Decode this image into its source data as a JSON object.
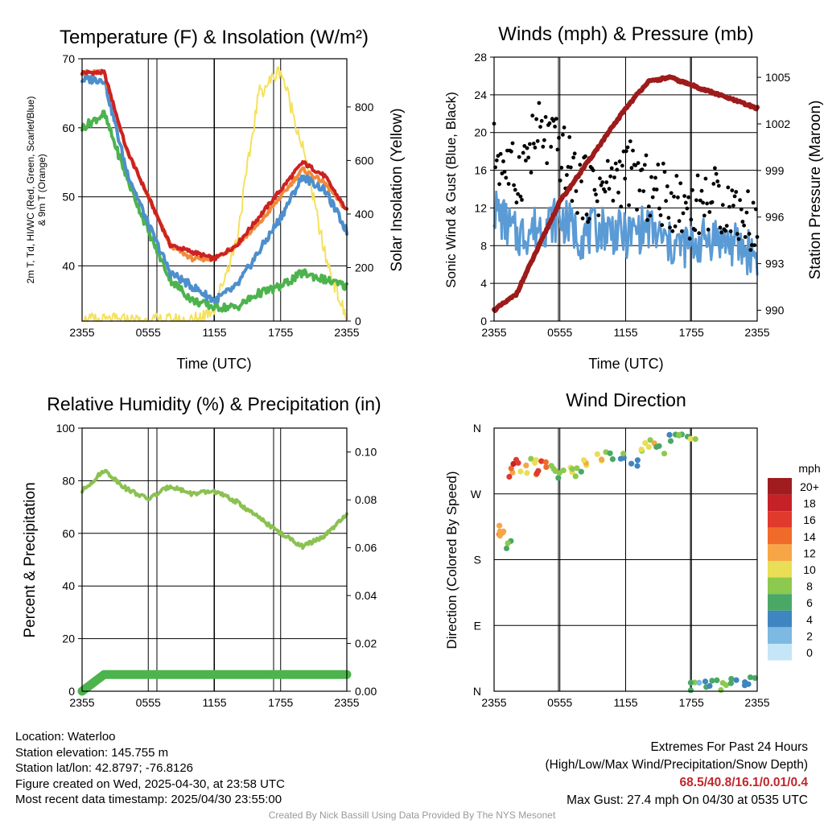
{
  "panels": {
    "temperature": {
      "title": "Temperature (F) & Insolation (W/m²)",
      "ylabel_left": [
        "2m T, Td, HI/WC (Red, Green, Scarlet/Blue)",
        "& 9m T (Orange)"
      ],
      "ylabel_right": "Solar Insolation (Yellow)",
      "xlabel": "Time (UTC)"
    },
    "winds": {
      "title": "Winds (mph) & Pressure (mb)",
      "ylabel_left": "Sonic Wind & Gust (Blue, Black)",
      "ylabel_right": "Station Pressure (Maroon)",
      "xlabel": "Time (UTC)"
    },
    "humidity": {
      "title": "Relative Humidity (%) & Precipitation (in)",
      "ylabel_left": "Percent & Precipitation"
    },
    "direction": {
      "title": "Wind Direction",
      "ylabel_left": "Direction (Colored By Speed)",
      "legend_title": "mph",
      "legend_labels": [
        "20+",
        "18",
        "16",
        "14",
        "12",
        "10",
        "8",
        "6",
        "4",
        "2",
        "0"
      ],
      "legend_colors": [
        "#a01c1e",
        "#c62127",
        "#e03a2c",
        "#f06b2a",
        "#f6a646",
        "#e9de55",
        "#8dc94f",
        "#4aa866",
        "#3f86c1",
        "#7db9e3",
        "#c4e6f7"
      ]
    }
  },
  "chart_data": [
    {
      "type": "line",
      "title": "Temperature (F) & Insolation (W/m²)",
      "xlabel": "Time (UTC)",
      "x_ticks": [
        "2355",
        "0555",
        "1155",
        "1755",
        "2355"
      ],
      "x": [
        "2355",
        "0155",
        "0355",
        "0555",
        "0755",
        "0955",
        "1155",
        "1355",
        "1555",
        "1755",
        "1955",
        "2155",
        "2355"
      ],
      "ylim_left": [
        32,
        70
      ],
      "yticks_left": [
        40,
        50,
        60,
        70
      ],
      "ylim_right": [
        0,
        980
      ],
      "yticks_right": [
        0,
        200,
        400,
        600,
        800
      ],
      "series": [
        {
          "axis": "left",
          "color": "#cc2222",
          "values": [
            68,
            68,
            57,
            50,
            43,
            42,
            41,
            43,
            47,
            51,
            55,
            53,
            48
          ]
        },
        {
          "axis": "left",
          "color": "#f08a3c",
          "values": [
            68,
            68,
            57,
            50,
            43,
            41,
            41,
            43,
            46,
            50,
            54,
            52,
            48
          ]
        },
        {
          "axis": "left",
          "color": "#4d8fcc",
          "values": [
            67,
            67,
            54,
            46,
            39,
            37,
            35,
            37,
            42,
            47,
            53,
            51,
            45
          ]
        },
        {
          "axis": "left",
          "color": "#4db34d",
          "values": [
            60,
            62,
            53,
            45,
            38,
            35,
            34,
            34,
            36,
            37,
            39,
            38,
            37
          ]
        },
        {
          "axis": "right",
          "color": "#f5e15c",
          "values": [
            0,
            0,
            0,
            0,
            0,
            0,
            50,
            300,
            850,
            940,
            650,
            250,
            0
          ]
        }
      ]
    },
    {
      "type": "line",
      "title": "Winds (mph) & Pressure (mb)",
      "xlabel": "Time (UTC)",
      "x_ticks": [
        "2355",
        "0555",
        "1155",
        "1755",
        "2355"
      ],
      "ylim_left": [
        0,
        28
      ],
      "yticks_left": [
        0,
        4,
        8,
        12,
        16,
        20,
        24,
        28
      ],
      "ylim_right": [
        989.3,
        1006.3
      ],
      "yticks_right": [
        990,
        993,
        996,
        999,
        1002,
        1005
      ],
      "series": [
        {
          "axis": "right",
          "color": "#9e1b1b",
          "values": [
            990,
            991,
            994,
            997,
            999,
            1001,
            1003,
            1004.7,
            1005,
            1004.5,
            1004,
            1003.5,
            1003
          ]
        },
        {
          "axis": "left",
          "color": "#5b9bd5",
          "values": [
            12,
            9,
            10,
            11,
            9,
            10,
            9,
            10,
            8,
            8,
            9,
            8,
            7
          ]
        },
        {
          "axis": "left",
          "color": "#000000",
          "values": [
            18,
            15,
            20,
            18,
            14,
            14,
            16,
            14,
            13,
            12,
            13,
            12,
            10
          ]
        }
      ]
    },
    {
      "type": "line",
      "title": "Relative Humidity (%) & Precipitation (in)",
      "x_ticks": [
        "2355",
        "0555",
        "1155",
        "1755",
        "2355"
      ],
      "ylim_left": [
        0,
        100
      ],
      "yticks_left": [
        0,
        20,
        40,
        60,
        80,
        100
      ],
      "ylim_right": [
        0,
        0.11
      ],
      "yticks_right": [
        "0.00",
        "0.02",
        "0.04",
        "0.06",
        "0.08",
        "0.10"
      ],
      "series": [
        {
          "axis": "left",
          "color": "#8cc152",
          "values": [
            76,
            84,
            77,
            73,
            78,
            75,
            76,
            72,
            66,
            60,
            55,
            59,
            67
          ]
        },
        {
          "axis": "right",
          "color": "#4db34d",
          "values": [
            0,
            0.007,
            0.007,
            0.007,
            0.007,
            0.007,
            0.007,
            0.007,
            0.007,
            0.007,
            0.007,
            0.007,
            0.007
          ]
        }
      ]
    },
    {
      "type": "scatter",
      "title": "Wind Direction",
      "x_ticks": [
        "2355",
        "0555",
        "1155",
        "1755",
        "2355"
      ],
      "y_ticks": [
        "N",
        "E",
        "S",
        "W",
        "N"
      ],
      "ylim": [
        0,
        360
      ],
      "points": [
        {
          "x": 0.3,
          "dir": 215,
          "mph": 12
        },
        {
          "x": 0.8,
          "dir": 220,
          "mph": 10
        },
        {
          "x": 1.2,
          "dir": 200,
          "mph": 7
        },
        {
          "x": 1.5,
          "dir": 300,
          "mph": 14
        },
        {
          "x": 2.1,
          "dir": 310,
          "mph": 16
        },
        {
          "x": 2.7,
          "dir": 305,
          "mph": 12
        },
        {
          "x": 3.6,
          "dir": 315,
          "mph": 10
        },
        {
          "x": 4.1,
          "dir": 300,
          "mph": 16
        },
        {
          "x": 4.6,
          "dir": 310,
          "mph": 14
        },
        {
          "x": 5.4,
          "dir": 303,
          "mph": 8
        },
        {
          "x": 6.0,
          "dir": 298,
          "mph": 6
        },
        {
          "x": 6.9,
          "dir": 305,
          "mph": 10
        },
        {
          "x": 7.8,
          "dir": 301,
          "mph": 8
        },
        {
          "x": 8.5,
          "dir": 310,
          "mph": 12
        },
        {
          "x": 9.5,
          "dir": 320,
          "mph": 10
        },
        {
          "x": 10.5,
          "dir": 322,
          "mph": 8
        },
        {
          "x": 11.8,
          "dir": 325,
          "mph": 6
        },
        {
          "x": 12.8,
          "dir": 315,
          "mph": 4
        },
        {
          "x": 13.5,
          "dir": 335,
          "mph": 8
        },
        {
          "x": 14.4,
          "dir": 340,
          "mph": 10
        },
        {
          "x": 15.2,
          "dir": 330,
          "mph": 6
        },
        {
          "x": 16.2,
          "dir": 345,
          "mph": 4
        },
        {
          "x": 17.1,
          "dir": 348,
          "mph": 6
        },
        {
          "x": 18.0,
          "dir": 352,
          "mph": 8
        },
        {
          "x": 18.2,
          "dir": 5,
          "mph": 6
        },
        {
          "x": 19.0,
          "dir": 10,
          "mph": 4
        },
        {
          "x": 20.0,
          "dir": 12,
          "mph": 6
        },
        {
          "x": 21.0,
          "dir": 8,
          "mph": 8
        },
        {
          "x": 22.0,
          "dir": 15,
          "mph": 6
        },
        {
          "x": 23.0,
          "dir": 12,
          "mph": 4
        },
        {
          "x": 23.7,
          "dir": 18,
          "mph": 6
        }
      ]
    }
  ],
  "footer": {
    "location": "Location: Waterloo",
    "elevation": "Station elevation: 145.755 m",
    "latlon": "Station lat/lon: 42.8797; -76.8126",
    "created": "Figure created on Wed, 2025-04-30, at 23:58 UTC",
    "recent": "Most recent data timestamp: 2025/04/30 23:55:00",
    "extremes_title": "Extremes For Past 24 Hours",
    "extremes_legend": "(High/Low/Max Wind/Precipitation/Snow Depth)",
    "extremes_values": "68.5/40.8/16.1/0.01/0.4",
    "max_gust": "Max Gust: 27.4 mph On 04/30 at 0535 UTC",
    "credit": "Created By Nick Bassill Using Data Provided By The NYS Mesonet"
  }
}
